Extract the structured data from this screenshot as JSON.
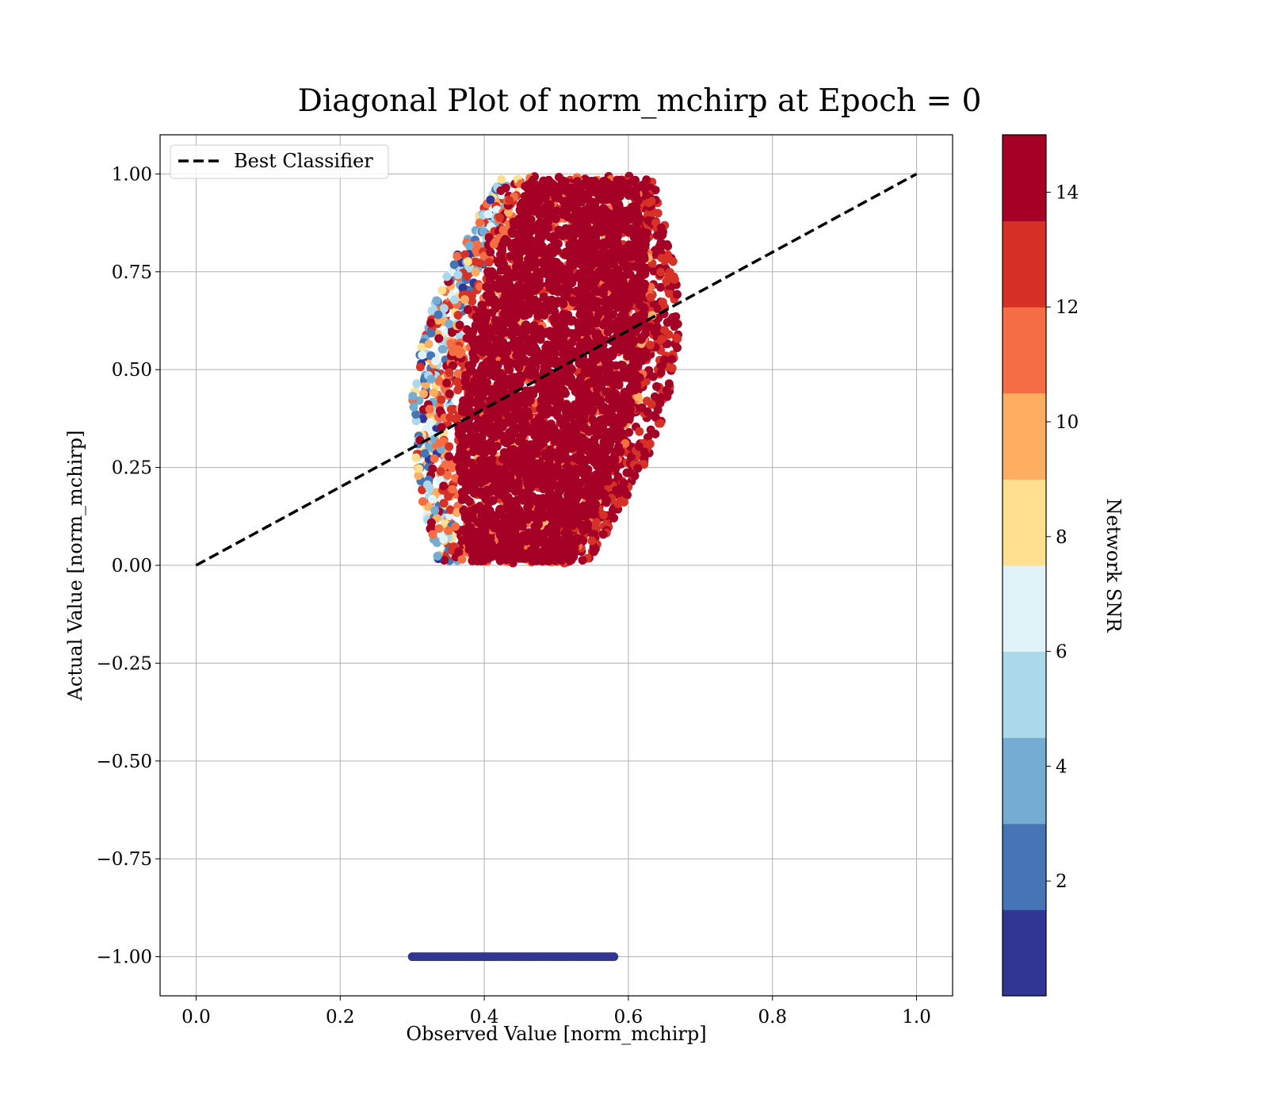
{
  "chart_data": {
    "type": "scatter",
    "title": "Diagonal Plot of norm_mchirp at Epoch = 0",
    "xlabel": "Observed Value [norm_mchirp]",
    "ylabel": "Actual Value [norm_mchirp]",
    "xlim": [
      -0.05,
      1.05
    ],
    "ylim": [
      -1.1,
      1.1
    ],
    "x_ticks": [
      0.0,
      0.2,
      0.4,
      0.6,
      0.8,
      1.0
    ],
    "x_tick_labels": [
      "0.0",
      "0.2",
      "0.4",
      "0.6",
      "0.8",
      "1.0"
    ],
    "y_ticks": [
      1.0,
      0.75,
      0.5,
      0.25,
      0.0,
      -0.25,
      -0.5,
      -0.75,
      -1.0
    ],
    "y_tick_labels": [
      "1.00",
      "0.75",
      "0.50",
      "0.25",
      "0.00",
      "−0.25",
      "−0.50",
      "−0.75",
      "−1.00"
    ],
    "grid": true,
    "legend": {
      "placement": "upper-left",
      "entries": [
        {
          "label": "Best Classifier",
          "style": "dashed",
          "color": "#000000"
        }
      ]
    },
    "reference_line": {
      "name": "Best Classifier",
      "x": [
        0.0,
        1.0
      ],
      "y": [
        0.0,
        1.0
      ]
    },
    "colorbar": {
      "label": "Network SNR",
      "range": [
        0,
        15
      ],
      "boundaries": [
        0,
        1.5,
        3,
        4.5,
        6,
        7.5,
        9,
        10.5,
        12,
        13.5,
        15
      ],
      "colors": [
        "#313695",
        "#4575b4",
        "#74add1",
        "#abd9e9",
        "#e0f3f8",
        "#fee090",
        "#fdae61",
        "#f46d43",
        "#d73027",
        "#a50026"
      ],
      "ticks": [
        2,
        4,
        6,
        8,
        10,
        12,
        14
      ],
      "tick_labels": [
        "2",
        "4",
        "6",
        "8",
        "10",
        "12",
        "14"
      ]
    },
    "scatter_clusters": [
      {
        "x_range": [
          0.3,
          0.58
        ],
        "y": -1.0,
        "snr": 0
      },
      {
        "x_center": 0.48,
        "x_halfwidth": [
          0.06,
          0.2
        ],
        "y_range": [
          0.0,
          1.0
        ],
        "snr_range": [
          0,
          15
        ]
      }
    ]
  }
}
